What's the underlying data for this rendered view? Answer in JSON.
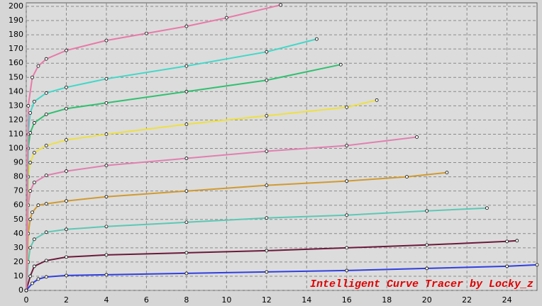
{
  "chart_data": {
    "type": "line",
    "annotation": "Intelligent Curve Tracer by Locky_z",
    "xlim": [
      0,
      25.5
    ],
    "ylim": [
      0,
      202.5
    ],
    "xticks": [
      0,
      2,
      4,
      6,
      8,
      10,
      12,
      14,
      16,
      18,
      20,
      22,
      24
    ],
    "yticks": [
      0,
      10,
      20,
      30,
      40,
      50,
      60,
      70,
      80,
      90,
      100,
      110,
      120,
      130,
      140,
      150,
      160,
      170,
      180,
      190,
      200
    ],
    "grid": true,
    "series": [
      {
        "color": "#2f3fe0",
        "x": [
          0,
          0.3,
          0.6,
          1,
          2,
          4,
          8,
          12,
          16,
          20,
          24,
          25.5
        ],
        "values": [
          0,
          5,
          8,
          9.5,
          10.5,
          11,
          12,
          13,
          14,
          15.5,
          17,
          18
        ]
      },
      {
        "color": "#6b1a3a",
        "x": [
          0,
          0.2,
          0.4,
          1,
          2,
          4,
          8,
          12,
          16,
          20,
          24,
          24.5
        ],
        "values": [
          0,
          10,
          17,
          21,
          23.5,
          25,
          26.5,
          28,
          30,
          32,
          34.5,
          35
        ]
      },
      {
        "color": "#5cc8b4",
        "x": [
          0,
          0.1,
          0.2,
          0.4,
          1,
          2,
          4,
          8,
          12,
          16,
          20,
          23
        ],
        "values": [
          0,
          20,
          30,
          36,
          41,
          43,
          45,
          48,
          51,
          53,
          56,
          58
        ]
      },
      {
        "color": "#d09a30",
        "x": [
          0,
          0.1,
          0.2,
          0.3,
          0.6,
          1,
          2,
          4,
          8,
          12,
          16,
          19,
          21
        ],
        "values": [
          0,
          40,
          50,
          55,
          60,
          61,
          63,
          66,
          70,
          74,
          77,
          80,
          83
        ]
      },
      {
        "color": "#e080b0",
        "x": [
          0,
          0.1,
          0.2,
          0.4,
          1,
          2,
          4,
          8,
          12,
          16,
          19.5
        ],
        "values": [
          0,
          60,
          70,
          76,
          81,
          84,
          88,
          93,
          98,
          102,
          108
        ]
      },
      {
        "color": "#eee040",
        "x": [
          0,
          0.1,
          0.2,
          0.4,
          1,
          2,
          4,
          8,
          12,
          16,
          17.5
        ],
        "values": [
          0,
          80,
          90,
          97,
          102,
          106,
          110,
          117,
          123,
          129,
          134
        ]
      },
      {
        "color": "#30c070",
        "x": [
          0,
          0.1,
          0.2,
          0.4,
          1,
          2,
          4,
          8,
          12,
          15.7
        ],
        "values": [
          0,
          100,
          111,
          118,
          124,
          128,
          132,
          140,
          148,
          159
        ]
      },
      {
        "color": "#40d8c8",
        "x": [
          0,
          0.1,
          0.2,
          0.4,
          1,
          2,
          4,
          8,
          12,
          14.5
        ],
        "values": [
          0,
          110,
          125,
          133,
          139,
          143,
          149,
          158,
          168,
          177
        ]
      },
      {
        "color": "#e87aa8",
        "x": [
          0,
          0.1,
          0.3,
          0.6,
          1,
          2,
          4,
          6,
          8,
          10,
          12.7
        ],
        "values": [
          0,
          130,
          150,
          158,
          163,
          169,
          176,
          181,
          186,
          192,
          201
        ]
      }
    ]
  }
}
